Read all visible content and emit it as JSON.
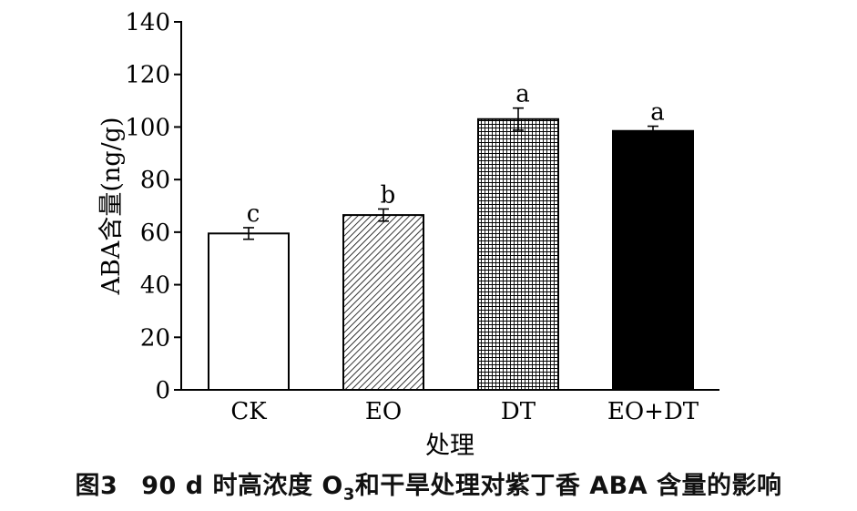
{
  "chart_data": {
    "type": "bar",
    "categories": [
      "CK",
      "EO",
      "DT",
      "EO+DT"
    ],
    "values": [
      59.5,
      66.5,
      103,
      98.5
    ],
    "errors": [
      2.2,
      2.3,
      4.2,
      1.8
    ],
    "significance": [
      "c",
      "b",
      "a",
      "a"
    ],
    "bar_fills": [
      "white",
      "diagonal-hatch",
      "crosshatch",
      "black"
    ],
    "ylabel": "ABA含量(ng/g)",
    "xlabel": "处理",
    "ylim": [
      0,
      140
    ],
    "yticks": [
      0,
      20,
      40,
      60,
      80,
      100,
      120,
      140
    ],
    "grid": false,
    "legend": "none"
  },
  "caption": {
    "figure_label": "图3",
    "text_before_o": "90 d 时高浓度 O",
    "subscript": "3",
    "text_after_o": "和干旱处理对紫丁香 ABA 含量的影响"
  },
  "colors": {
    "ink": "#000000",
    "background": "#ffffff"
  }
}
